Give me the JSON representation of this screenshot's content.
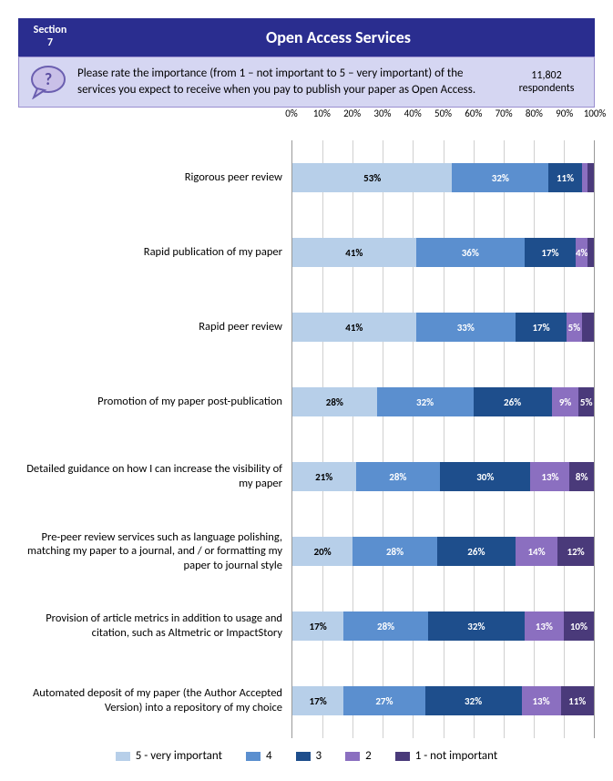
{
  "header": {
    "section_word": "Section",
    "section_num": "7",
    "title": "Open Access Services",
    "bg_color": "#2a2d8f",
    "tab_bg_color": "#2a2d8f"
  },
  "prompt": {
    "text": "Please rate the importance (from 1 – not important to 5 – very important) of the services you expect to receive when you pay to publish your paper as Open Access.",
    "respondents_num": "11,802",
    "respondents_label": "respondents",
    "bg_color": "#d5d6f2",
    "icon_fill": "#c9c0e8",
    "icon_stroke": "#6b5fb0"
  },
  "chart": {
    "type": "stacked-bar-horizontal",
    "x_ticks": [
      "0%",
      "10%",
      "20%",
      "30%",
      "40%",
      "50%",
      "60%",
      "70%",
      "80%",
      "90%",
      "100%"
    ],
    "grid_color": "#d0d0d0",
    "series": [
      {
        "key": "s5",
        "label": "5 - very important",
        "color": "#b7cfe9",
        "text_color": "#000000"
      },
      {
        "key": "s4",
        "label": "4",
        "color": "#5b8fcf",
        "text_color": "#ffffff"
      },
      {
        "key": "s3",
        "label": "3",
        "color": "#1e4e8c",
        "text_color": "#ffffff"
      },
      {
        "key": "s2",
        "label": "2",
        "color": "#8b6fc0",
        "text_color": "#ffffff"
      },
      {
        "key": "s1",
        "label": "1 - not important",
        "color": "#4a3a7a",
        "text_color": "#ffffff"
      }
    ],
    "rows": [
      {
        "label": "Rigorous peer review",
        "values": {
          "s5": 53,
          "s4": 32,
          "s3": 11,
          "s2": 2,
          "s1": 2
        },
        "show": {
          "s5": "53%",
          "s4": "32%",
          "s3": "11%",
          "s2": "",
          "s1": ""
        }
      },
      {
        "label": "Rapid publication of my paper",
        "values": {
          "s5": 41,
          "s4": 36,
          "s3": 17,
          "s2": 4,
          "s1": 2
        },
        "show": {
          "s5": "41%",
          "s4": "36%",
          "s3": "17%",
          "s2": "4%",
          "s1": ""
        }
      },
      {
        "label": "Rapid peer review",
        "values": {
          "s5": 41,
          "s4": 33,
          "s3": 17,
          "s2": 5,
          "s1": 4
        },
        "show": {
          "s5": "41%",
          "s4": "33%",
          "s3": "17%",
          "s2": "5%",
          "s1": ""
        }
      },
      {
        "label": "Promotion of my paper post-publication",
        "values": {
          "s5": 28,
          "s4": 32,
          "s3": 26,
          "s2": 9,
          "s1": 5
        },
        "show": {
          "s5": "28%",
          "s4": "32%",
          "s3": "26%",
          "s2": "9%",
          "s1": "5%"
        }
      },
      {
        "label": "Detailed guidance on how I can increase the visibility of my paper",
        "values": {
          "s5": 21,
          "s4": 28,
          "s3": 30,
          "s2": 13,
          "s1": 8
        },
        "show": {
          "s5": "21%",
          "s4": "28%",
          "s3": "30%",
          "s2": "13%",
          "s1": "8%"
        }
      },
      {
        "label": "Pre-peer review services such as language polishing, matching my paper to a journal, and / or formatting my paper to journal style",
        "values": {
          "s5": 20,
          "s4": 28,
          "s3": 26,
          "s2": 14,
          "s1": 12
        },
        "show": {
          "s5": "20%",
          "s4": "28%",
          "s3": "26%",
          "s2": "14%",
          "s1": "12%"
        }
      },
      {
        "label": "Provision of article metrics in addition to usage and citation, such as Altmetric or ImpactStory",
        "values": {
          "s5": 17,
          "s4": 28,
          "s3": 32,
          "s2": 13,
          "s1": 10
        },
        "show": {
          "s5": "17%",
          "s4": "28%",
          "s3": "32%",
          "s2": "13%",
          "s1": "10%"
        }
      },
      {
        "label": "Automated deposit of my paper (the Author Accepted Version) into a repository of my choice",
        "values": {
          "s5": 17,
          "s4": 27,
          "s3": 32,
          "s2": 13,
          "s1": 11
        },
        "show": {
          "s5": "17%",
          "s4": "27%",
          "s3": "32%",
          "s2": "13%",
          "s1": "11%"
        }
      }
    ]
  }
}
